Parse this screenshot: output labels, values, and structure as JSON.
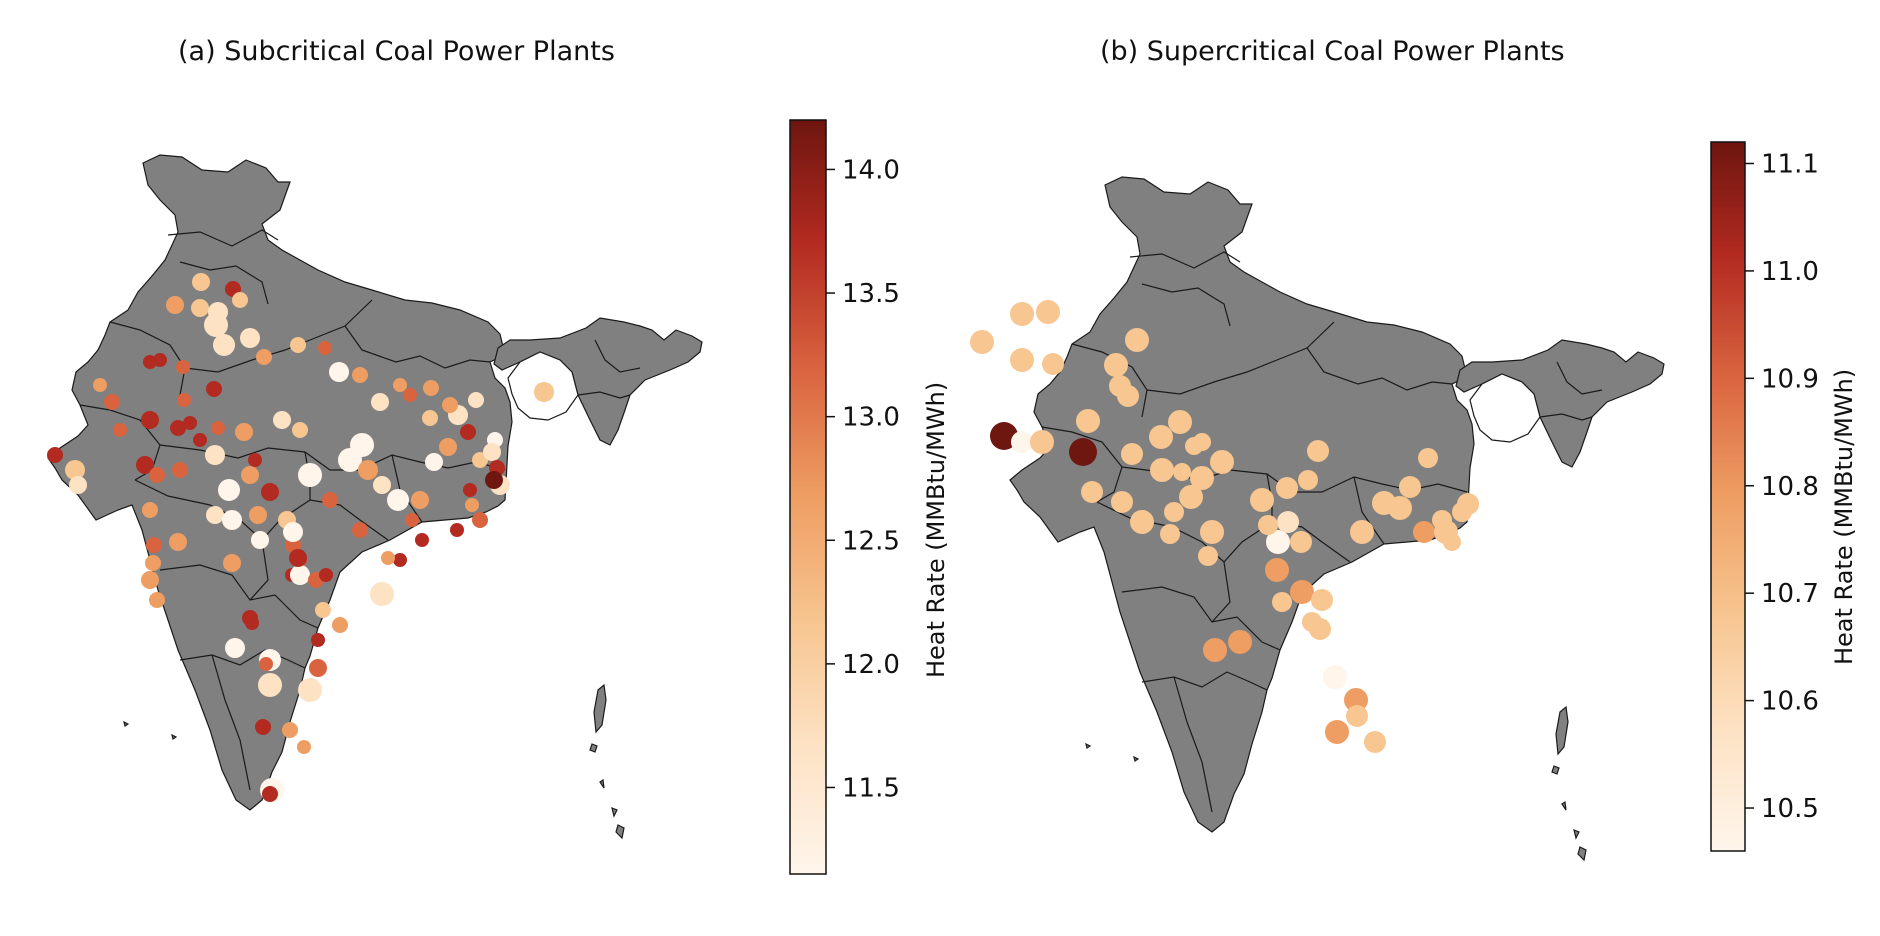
{
  "panels": [
    {
      "id": "a",
      "title": "(a) Subcritical Coal Power Plants",
      "colorbar": {
        "label": "Heat Rate (MMBtu/MWh)",
        "ticks": [
          "14.0",
          "13.5",
          "13.0",
          "12.5",
          "12.0",
          "11.5"
        ],
        "range": [
          11.15,
          14.2
        ]
      }
    },
    {
      "id": "b",
      "title": "(b) Supercritical Coal Power Plants",
      "colorbar": {
        "label": "Heat Rate (MMBtu/MWh)",
        "ticks": [
          "11.1",
          "11.0",
          "10.9",
          "10.8",
          "10.7",
          "10.6",
          "10.5"
        ],
        "range": [
          10.46,
          11.12
        ]
      }
    }
  ],
  "colors": {
    "land": "#808080",
    "border": "#1a1a1a",
    "colormap": [
      "#fff5eb",
      "#fde2c4",
      "#f7c691",
      "#ee9e63",
      "#d9633f",
      "#b22a20",
      "#6e1610"
    ]
  }
}
